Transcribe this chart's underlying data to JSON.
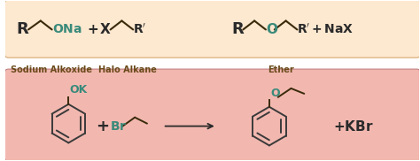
{
  "bg_top_color": "#fde8d0",
  "bg_bottom_color": "#f2b8b0",
  "teal_color": "#3a8a7a",
  "dark_color": "#2a2a2a",
  "label_color": "#6a4a1a",
  "fig_w": 4.74,
  "fig_h": 1.82,
  "dpi": 100,
  "lbl1": "Sodium Alkoxide",
  "lbl2": "Halo Alkane",
  "lbl3": "Ether",
  "bottom_ok": "OK",
  "bottom_br": "Br",
  "bottom_kbr": "+ KBr"
}
